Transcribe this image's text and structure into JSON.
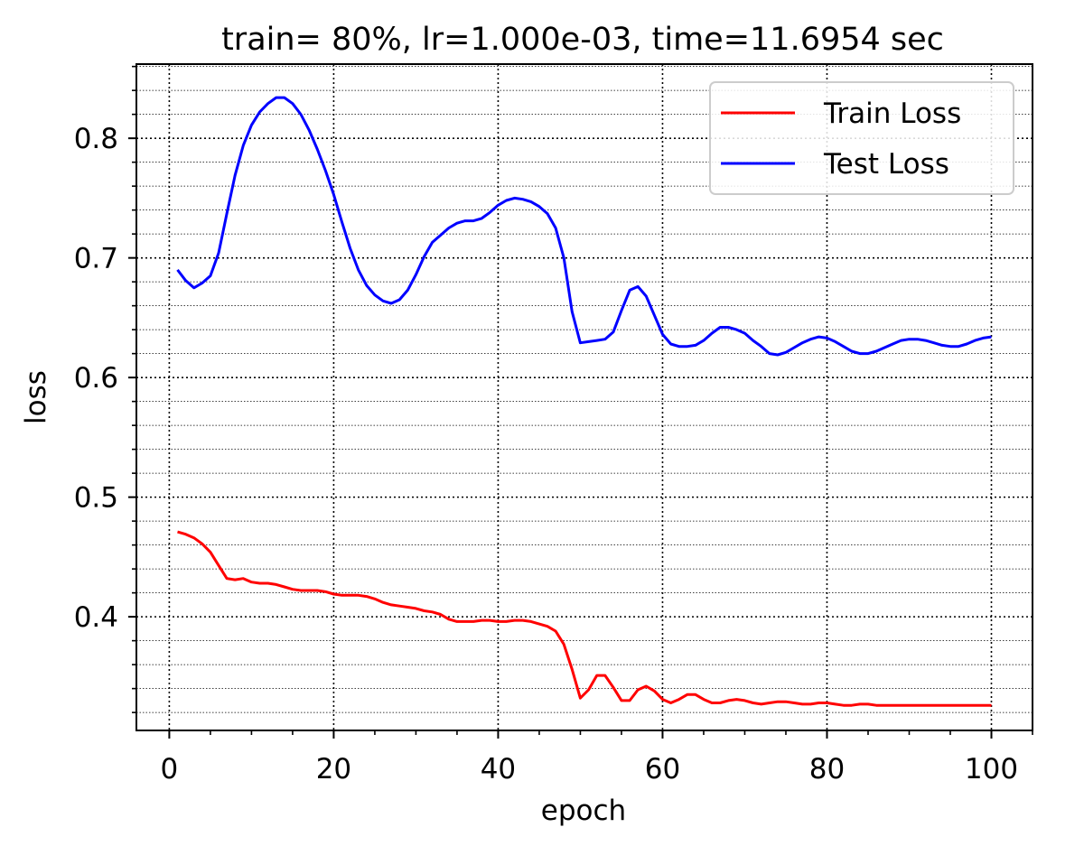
{
  "chart_data": {
    "type": "line",
    "title": "train= 80%, lr=1.000e-03, time=11.6954 sec",
    "xlabel": "epoch",
    "ylabel": "loss",
    "xlim": [
      -4,
      105
    ],
    "ylim": [
      0.305,
      0.862
    ],
    "xticks": [
      0,
      20,
      40,
      60,
      80,
      100
    ],
    "xtick_labels": [
      "0",
      "20",
      "40",
      "60",
      "80",
      "100"
    ],
    "yticks": [
      0.4,
      0.5,
      0.6,
      0.7,
      0.8
    ],
    "ytick_labels": [
      "0.4",
      "0.5",
      "0.6",
      "0.7",
      "0.8"
    ],
    "grid": "major and minor, dotted",
    "legend_position": "top-right",
    "series": [
      {
        "name": "Train Loss",
        "color": "#ff0000",
        "x": [
          1,
          2,
          3,
          4,
          5,
          6,
          7,
          8,
          9,
          10,
          11,
          12,
          13,
          14,
          15,
          16,
          17,
          18,
          19,
          20,
          21,
          22,
          23,
          24,
          25,
          26,
          27,
          28,
          29,
          30,
          31,
          32,
          33,
          34,
          35,
          36,
          37,
          38,
          39,
          40,
          41,
          42,
          43,
          44,
          45,
          46,
          47,
          48,
          49,
          50,
          51,
          52,
          53,
          54,
          55,
          56,
          57,
          58,
          59,
          60,
          61,
          62,
          63,
          64,
          65,
          66,
          67,
          68,
          69,
          70,
          71,
          72,
          73,
          74,
          75,
          76,
          77,
          78,
          79,
          80,
          81,
          82,
          83,
          84,
          85,
          86,
          87,
          88,
          89,
          90,
          91,
          92,
          93,
          94,
          95,
          96,
          97,
          98,
          99,
          100
        ],
        "values": [
          0.471,
          0.469,
          0.466,
          0.461,
          0.454,
          0.443,
          0.432,
          0.431,
          0.432,
          0.429,
          0.428,
          0.428,
          0.427,
          0.425,
          0.423,
          0.422,
          0.422,
          0.422,
          0.421,
          0.419,
          0.418,
          0.418,
          0.418,
          0.417,
          0.415,
          0.412,
          0.41,
          0.409,
          0.408,
          0.407,
          0.405,
          0.404,
          0.402,
          0.398,
          0.396,
          0.396,
          0.396,
          0.397,
          0.397,
          0.396,
          0.396,
          0.397,
          0.397,
          0.396,
          0.394,
          0.392,
          0.388,
          0.377,
          0.356,
          0.332,
          0.339,
          0.351,
          0.351,
          0.341,
          0.33,
          0.33,
          0.339,
          0.342,
          0.338,
          0.331,
          0.328,
          0.331,
          0.335,
          0.335,
          0.331,
          0.328,
          0.328,
          0.33,
          0.331,
          0.33,
          0.328,
          0.327,
          0.328,
          0.329,
          0.329,
          0.328,
          0.327,
          0.327,
          0.328,
          0.328,
          0.327,
          0.326,
          0.326,
          0.327,
          0.327,
          0.326,
          0.326,
          0.326,
          0.326,
          0.326,
          0.326,
          0.326,
          0.326,
          0.326,
          0.326,
          0.326,
          0.326,
          0.326,
          0.326,
          0.326
        ]
      },
      {
        "name": "Test Loss",
        "color": "#0000ff",
        "x": [
          1,
          2,
          3,
          4,
          5,
          6,
          7,
          8,
          9,
          10,
          11,
          12,
          13,
          14,
          15,
          16,
          17,
          18,
          19,
          20,
          21,
          22,
          23,
          24,
          25,
          26,
          27,
          28,
          29,
          30,
          31,
          32,
          33,
          34,
          35,
          36,
          37,
          38,
          39,
          40,
          41,
          42,
          43,
          44,
          45,
          46,
          47,
          48,
          49,
          50,
          51,
          52,
          53,
          54,
          55,
          56,
          57,
          58,
          59,
          60,
          61,
          62,
          63,
          64,
          65,
          66,
          67,
          68,
          69,
          70,
          71,
          72,
          73,
          74,
          75,
          76,
          77,
          78,
          79,
          80,
          81,
          82,
          83,
          84,
          85,
          86,
          87,
          88,
          89,
          90,
          91,
          92,
          93,
          94,
          95,
          96,
          97,
          98,
          99,
          100
        ],
        "values": [
          0.69,
          0.681,
          0.675,
          0.679,
          0.685,
          0.704,
          0.737,
          0.769,
          0.794,
          0.811,
          0.822,
          0.829,
          0.834,
          0.834,
          0.829,
          0.82,
          0.807,
          0.791,
          0.773,
          0.753,
          0.73,
          0.708,
          0.69,
          0.677,
          0.669,
          0.664,
          0.662,
          0.665,
          0.673,
          0.686,
          0.701,
          0.713,
          0.719,
          0.725,
          0.729,
          0.731,
          0.731,
          0.733,
          0.738,
          0.744,
          0.748,
          0.75,
          0.749,
          0.747,
          0.743,
          0.737,
          0.725,
          0.7,
          0.655,
          0.629,
          0.63,
          0.631,
          0.632,
          0.638,
          0.656,
          0.673,
          0.676,
          0.668,
          0.652,
          0.636,
          0.628,
          0.626,
          0.626,
          0.627,
          0.631,
          0.637,
          0.642,
          0.642,
          0.64,
          0.637,
          0.631,
          0.626,
          0.62,
          0.619,
          0.621,
          0.625,
          0.629,
          0.632,
          0.634,
          0.633,
          0.63,
          0.626,
          0.622,
          0.62,
          0.62,
          0.622,
          0.625,
          0.628,
          0.631,
          0.632,
          0.632,
          0.631,
          0.629,
          0.627,
          0.626,
          0.626,
          0.628,
          0.631,
          0.633,
          0.634
        ]
      }
    ]
  }
}
